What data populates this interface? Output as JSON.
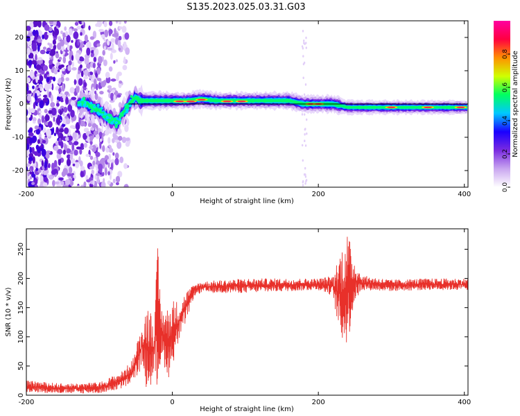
{
  "figure": {
    "title": "S135.2023.025.03.31.G03"
  },
  "colorbar": {
    "label": "Normalized spectral amplitude",
    "ticks": [
      "0.0",
      "0.2",
      "0.4",
      "0.6",
      "0.8"
    ],
    "tick_values": [
      0.0,
      0.2,
      0.4,
      0.6,
      0.8
    ],
    "range": [
      0,
      1
    ]
  },
  "chart_data": [
    {
      "type": "heatmap",
      "xlabel": "Height of straight line (km)",
      "ylabel": "Frequency (Hz)",
      "xlim": [
        -200,
        405
      ],
      "ylim": [
        -25,
        25
      ],
      "xticks": [
        -200,
        0,
        200,
        400
      ],
      "xtick_labels": [
        "-200",
        "0",
        "200",
        "400"
      ],
      "yticks": [
        -20,
        -10,
        0,
        10,
        20
      ],
      "ytick_labels": [
        "-20",
        "-10",
        "0",
        "10",
        "20"
      ],
      "colormap": [
        "#ffffff",
        "#c9a6f0",
        "#7a2be0",
        "#1a00ff",
        "#00c8ff",
        "#00ff60",
        "#d0ff00",
        "#ff9000",
        "#ff0040",
        "#ff00a0"
      ],
      "ridge": {
        "x": [
          -130,
          -120,
          -110,
          -100,
          -90,
          -80,
          -75,
          -70,
          -65,
          -60,
          -55,
          -50,
          -45,
          -40,
          -30,
          -20,
          0,
          20,
          40,
          60,
          80,
          100,
          130,
          160,
          180,
          200,
          220,
          240,
          260,
          300,
          350,
          400
        ],
        "y": [
          0,
          0.5,
          -1,
          -2,
          -4,
          -5,
          -6,
          -3,
          -2,
          0,
          1,
          2,
          1,
          1,
          1,
          1,
          1,
          1,
          1.5,
          1,
          1,
          1,
          1,
          1,
          0,
          0,
          0,
          -1,
          -1,
          -1,
          -1,
          -1
        ]
      }
    },
    {
      "type": "line",
      "xlabel": "Height of straight line (km)",
      "ylabel": "SNR (10 * v/v)",
      "xlim": [
        -200,
        405
      ],
      "ylim": [
        0,
        285
      ],
      "xticks": [
        -200,
        0,
        200,
        400
      ],
      "xtick_labels": [
        "-200",
        "0",
        "200",
        "400"
      ],
      "yticks": [
        0,
        50,
        100,
        150,
        200,
        250
      ],
      "ytick_labels": [
        "0",
        "50",
        "100",
        "150",
        "200",
        "250"
      ],
      "color": "#e8302a",
      "envelope": {
        "x": [
          -200,
          -150,
          -100,
          -70,
          -55,
          -45,
          -40,
          -35,
          -25,
          -20,
          -15,
          -5,
          0,
          10,
          20,
          30,
          40,
          100,
          200,
          220,
          230,
          240,
          250,
          260,
          300,
          350,
          405
        ],
        "low": [
          5,
          3,
          3,
          10,
          20,
          40,
          55,
          0,
          30,
          10,
          60,
          30,
          50,
          95,
          130,
          170,
          175,
          175,
          180,
          170,
          95,
          85,
          160,
          180,
          178,
          180,
          180
        ],
        "high": [
          25,
          20,
          22,
          40,
          60,
          105,
          120,
          160,
          135,
          255,
          150,
          150,
          165,
          160,
          180,
          190,
          195,
          200,
          200,
          205,
          250,
          280,
          230,
          205,
          198,
          200,
          200
        ]
      }
    }
  ]
}
